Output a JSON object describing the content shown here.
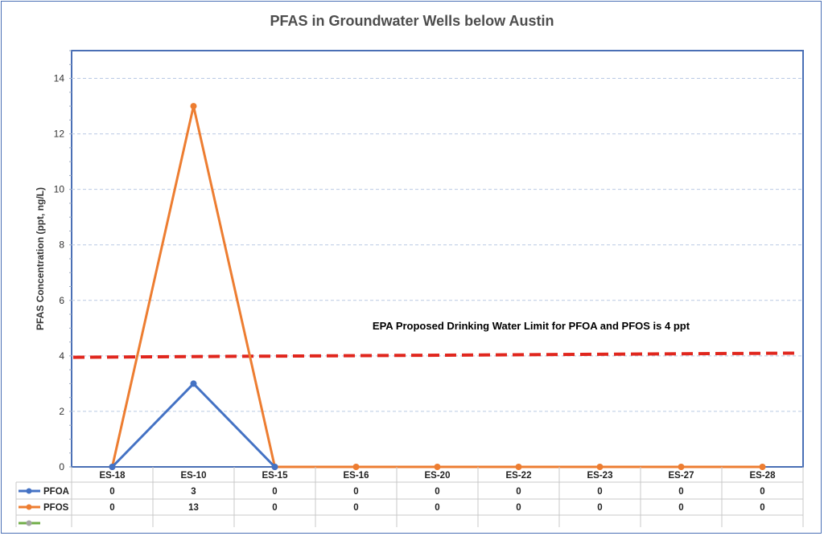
{
  "chart_data": {
    "type": "line",
    "title": "PFAS in Groundwater Wells below Austin",
    "ylabel": "PFAS Concentration (ppt, ng/L)",
    "xlabel": "",
    "ylim": [
      0,
      15
    ],
    "yticks": [
      0,
      2,
      4,
      6,
      8,
      10,
      12,
      14
    ],
    "categories": [
      "ES-18",
      "ES-10",
      "ES-15",
      "ES-16",
      "ES-20",
      "ES-22",
      "ES-23",
      "ES-27",
      "ES-28"
    ],
    "series": [
      {
        "name": "PFOA",
        "color": "#4472c4",
        "values": [
          0,
          3,
          0,
          null,
          null,
          null,
          null,
          null,
          null
        ],
        "table_values": [
          "0",
          "3",
          "0",
          "0",
          "0",
          "0",
          "0",
          "0",
          "0"
        ]
      },
      {
        "name": "PFOS",
        "color": "#ed7d31",
        "values": [
          0,
          13,
          0,
          0,
          0,
          0,
          0,
          0,
          0
        ],
        "table_values": [
          "0",
          "13",
          "0",
          "0",
          "0",
          "0",
          "0",
          "0",
          "0"
        ]
      }
    ],
    "reference_line": {
      "label": "EPA Proposed Drinking Water Limit for PFOA and PFOS is  4 ppt",
      "y_start": 3.95,
      "y_end": 4.1,
      "color": "#e0261d",
      "style": "dashed"
    },
    "third_legend_color": "#70ad47",
    "third_legend_marker_color": "#a5a5a5",
    "grid": true,
    "legend": "data-table"
  }
}
